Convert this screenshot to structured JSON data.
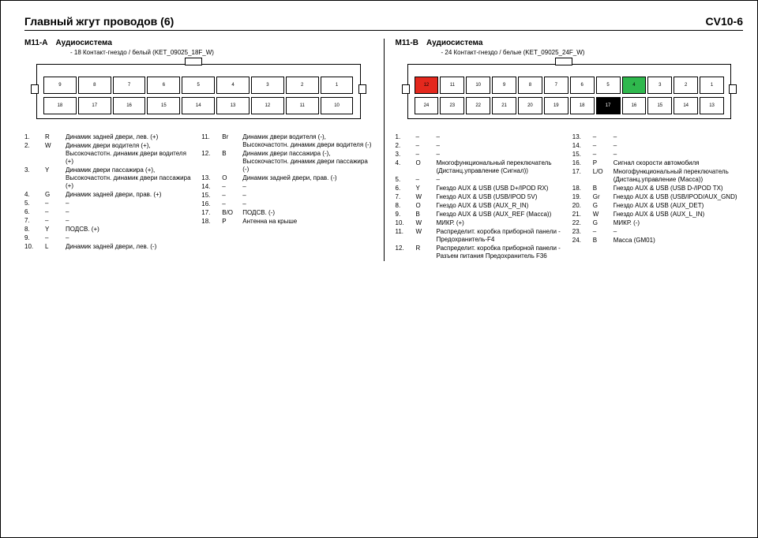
{
  "title": "Главный жгут проводов (6)",
  "page_code": "CV10-6",
  "connectors": [
    {
      "id": "M11-A",
      "title": "Аудиосистема",
      "sub": "- 18 Контакт-гнездо / белый (KET_09025_18F_W)",
      "rows": [
        [
          "9",
          "8",
          "7",
          "6",
          "5",
          "4",
          "3",
          "2",
          "1"
        ],
        [
          "18",
          "17",
          "16",
          "15",
          "14",
          "13",
          "12",
          "11",
          "10"
        ]
      ],
      "highlight": {},
      "legend_left": [
        {
          "n": "1.",
          "c": "R",
          "d": "Динамик задней двери, лев. (+)"
        },
        {
          "n": "2.",
          "c": "W",
          "d": "Динамик двери водителя (+), Высокочастотн. динамик двери водителя (+)"
        },
        {
          "n": "3.",
          "c": "Y",
          "d": "Динамик двери пассажира (+), Высокочастотн. динамик двери пассажира (+)"
        },
        {
          "n": "4.",
          "c": "G",
          "d": "Динамик задней двери, прав. (+)"
        },
        {
          "n": "5.",
          "c": "–",
          "d": "–"
        },
        {
          "n": "6.",
          "c": "–",
          "d": "–"
        },
        {
          "n": "7.",
          "c": "–",
          "d": "–"
        },
        {
          "n": "8.",
          "c": "Y",
          "d": "ПОДСВ. (+)"
        },
        {
          "n": "9.",
          "c": "–",
          "d": "–"
        },
        {
          "n": "10.",
          "c": "L",
          "d": "Динамик задней двери, лев. (-)"
        }
      ],
      "legend_right": [
        {
          "n": "11.",
          "c": "Br",
          "d": "Динамик двери водителя (-), Высокочастотн. динамик двери водителя (-)"
        },
        {
          "n": "12.",
          "c": "B",
          "d": "Динамик двери пассажира (-), Высокочастотн. динамик двери пассажира (-)"
        },
        {
          "n": "13.",
          "c": "O",
          "d": "Динамик задней двери, прав. (-)"
        },
        {
          "n": "14.",
          "c": "–",
          "d": "–"
        },
        {
          "n": "15.",
          "c": "–",
          "d": "–"
        },
        {
          "n": "16.",
          "c": "–",
          "d": "–"
        },
        {
          "n": "17.",
          "c": "B/O",
          "d": "ПОДСВ. (-)"
        },
        {
          "n": "18.",
          "c": "P",
          "d": "Антенна на крыше"
        }
      ]
    },
    {
      "id": "M11-B",
      "title": "Аудиосистема",
      "sub": "- 24 Контакт-гнездо / белые (KET_09025_24F_W)",
      "rows": [
        [
          "12",
          "11",
          "10",
          "9",
          "8",
          "7",
          "6",
          "5",
          "4",
          "3",
          "2",
          "1"
        ],
        [
          "24",
          "23",
          "22",
          "21",
          "20",
          "19",
          "18",
          "17",
          "16",
          "15",
          "14",
          "13"
        ]
      ],
      "highlight": {
        "12": "r",
        "4": "g",
        "17": "k"
      },
      "legend_left": [
        {
          "n": "1.",
          "c": "–",
          "d": "–"
        },
        {
          "n": "2.",
          "c": "–",
          "d": "–"
        },
        {
          "n": "3.",
          "c": "–",
          "d": "–"
        },
        {
          "n": "4.",
          "c": "O",
          "d": "Многофункциональный переключатель (Дистанц.управление (Сигнал))"
        },
        {
          "n": "5.",
          "c": "–",
          "d": "–"
        },
        {
          "n": "6.",
          "c": "Y",
          "d": "Гнездо AUX & USB (USB D+/IPOD RX)"
        },
        {
          "n": "7.",
          "c": "W",
          "d": "Гнездо AUX & USB (USB/IPOD 5V)"
        },
        {
          "n": "8.",
          "c": "O",
          "d": "Гнездо AUX & USB (AUX_R_IN)"
        },
        {
          "n": "9.",
          "c": "B",
          "d": "Гнездо AUX & USB (AUX_REF (Масса))"
        },
        {
          "n": "10.",
          "c": "W",
          "d": "МИКР. (+)"
        },
        {
          "n": "11.",
          "c": "W",
          "d": "Распределит. коробка приборной панели - Предохранитель-F4"
        },
        {
          "n": "12.",
          "c": "R",
          "d": "Распределит. коробка приборной панели - Разъем питания Предохранитель F36"
        }
      ],
      "legend_right": [
        {
          "n": "13.",
          "c": "–",
          "d": "–"
        },
        {
          "n": "14.",
          "c": "–",
          "d": "–"
        },
        {
          "n": "15.",
          "c": "–",
          "d": "–"
        },
        {
          "n": "16.",
          "c": "P",
          "d": "Сигнал скорости автомобиля"
        },
        {
          "n": "17.",
          "c": "L/O",
          "d": "Многофункциональный переключатель (Дистанц.управление (Масса))"
        },
        {
          "n": "18.",
          "c": "B",
          "d": "Гнездо AUX & USB (USB D-/IPOD TX)"
        },
        {
          "n": "19.",
          "c": "Gr",
          "d": "Гнездо AUX & USB (USB/IPOD/AUX_GND)"
        },
        {
          "n": "20.",
          "c": "G",
          "d": "Гнездо AUX & USB (AUX_DET)"
        },
        {
          "n": "21.",
          "c": "W",
          "d": "Гнездо AUX & USB (AUX_L_IN)"
        },
        {
          "n": "22.",
          "c": "G",
          "d": "МИКР. (-)"
        },
        {
          "n": "23.",
          "c": "–",
          "d": "–"
        },
        {
          "n": "24.",
          "c": "B",
          "d": "Масса (GM01)"
        }
      ]
    }
  ],
  "colors": {
    "r": "#e4281d",
    "g": "#2fb84d",
    "k": "#000000",
    "bg": "#ffffff"
  },
  "font_sizes": {
    "title": 14,
    "conn_id": 10,
    "body": 8,
    "pin": 6
  }
}
